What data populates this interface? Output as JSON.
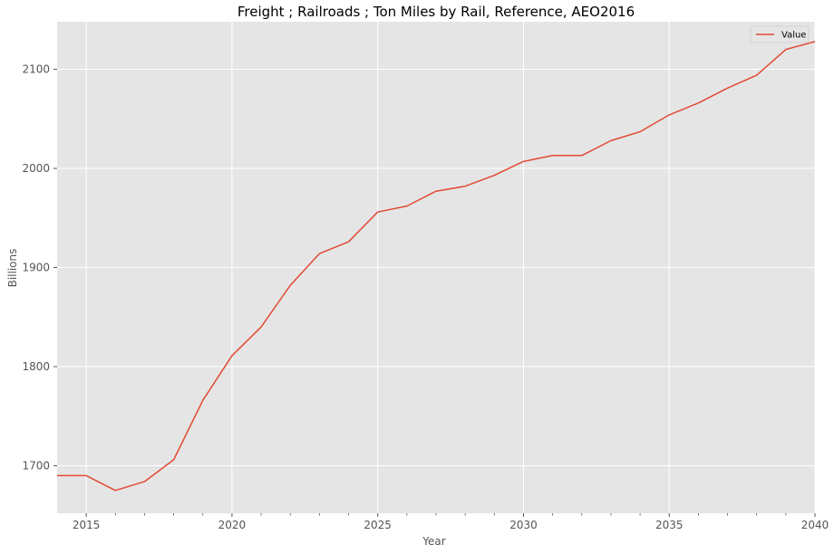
{
  "chart_data": {
    "type": "line",
    "title": "Freight ; Railroads ; Ton Miles by Rail, Reference, AEO2016",
    "xlabel": "Year",
    "ylabel": "Billions",
    "xlim": [
      2014,
      2040
    ],
    "ylim": [
      1652,
      2148
    ],
    "x_ticks": [
      2015,
      2020,
      2025,
      2030,
      2035,
      2040
    ],
    "x_minor_ticks": [
      2016,
      2017,
      2018,
      2019,
      2021,
      2022,
      2023,
      2024,
      2026,
      2027,
      2028,
      2029,
      2031,
      2032,
      2033,
      2034,
      2036,
      2037,
      2038,
      2039
    ],
    "y_ticks": [
      1700,
      1800,
      1900,
      2000,
      2100
    ],
    "grid": true,
    "legend_position": "top-right",
    "series": [
      {
        "name": "Value",
        "color": "#E24A33",
        "x": [
          2014,
          2015,
          2016,
          2017,
          2018,
          2019,
          2020,
          2021,
          2022,
          2023,
          2024,
          2025,
          2026,
          2027,
          2028,
          2029,
          2030,
          2031,
          2032,
          2033,
          2034,
          2035,
          2036,
          2037,
          2038,
          2039,
          2040
        ],
        "values": [
          1690,
          1690,
          1675,
          1684,
          1706,
          1766,
          1811,
          1840,
          1882,
          1914,
          1926,
          1956,
          1962,
          1977,
          1982,
          1993,
          2007,
          2013,
          2013,
          2028,
          2037,
          2054,
          2066,
          2081,
          2094,
          2120,
          2128
        ]
      }
    ]
  }
}
